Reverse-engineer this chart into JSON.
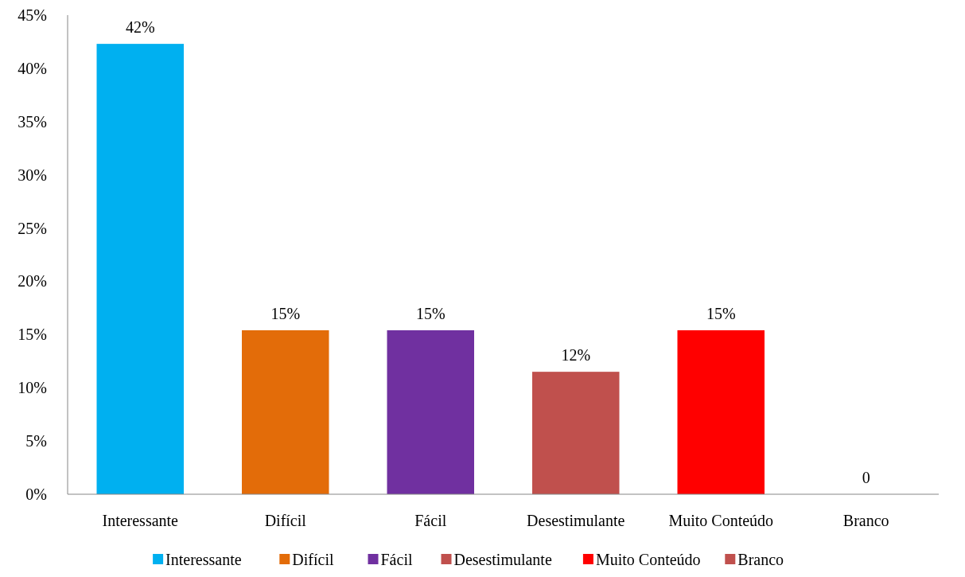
{
  "chart_data": {
    "type": "bar",
    "categories": [
      "Interessante",
      "Difícil",
      "Fácil",
      "Desestimulante",
      "Muito Conteúdo",
      "Branco"
    ],
    "series": [
      {
        "name": "Interessante",
        "color": "#00b0f0",
        "values": [
          42.3,
          null,
          null,
          null,
          null,
          null
        ],
        "value_labels": [
          "42%",
          null,
          null,
          null,
          null,
          null
        ]
      },
      {
        "name": "Difícil",
        "color": "#e36c09",
        "values": [
          null,
          15.4,
          null,
          null,
          null,
          null
        ],
        "value_labels": [
          null,
          "15%",
          null,
          null,
          null,
          null
        ]
      },
      {
        "name": "Fácil",
        "color": "#7030a0",
        "values": [
          null,
          null,
          15.4,
          null,
          null,
          null
        ],
        "value_labels": [
          null,
          null,
          "15%",
          null,
          null,
          null
        ]
      },
      {
        "name": "Desestimulante",
        "color": "#c0504d",
        "values": [
          null,
          null,
          null,
          11.5,
          null,
          null
        ],
        "value_labels": [
          null,
          null,
          null,
          "12%",
          null,
          null
        ]
      },
      {
        "name": "Muito Conteúdo",
        "color": "#ff0000",
        "values": [
          null,
          null,
          null,
          null,
          15.4,
          null
        ],
        "value_labels": [
          null,
          null,
          null,
          null,
          "15%",
          null
        ]
      },
      {
        "name": "Branco",
        "color": "#c0504d",
        "values": [
          null,
          null,
          null,
          null,
          null,
          0
        ],
        "value_labels": [
          null,
          null,
          null,
          null,
          null,
          "0"
        ]
      }
    ],
    "ylim": [
      0,
      45
    ],
    "yticks": [
      {
        "value": 0,
        "label": "0%"
      },
      {
        "value": 5,
        "label": "5%"
      },
      {
        "value": 10,
        "label": "10%"
      },
      {
        "value": 15,
        "label": "15%"
      },
      {
        "value": 20,
        "label": "20%"
      },
      {
        "value": 25,
        "label": "25%"
      },
      {
        "value": 30,
        "label": "30%"
      },
      {
        "value": 35,
        "label": "35%"
      },
      {
        "value": 40,
        "label": "40%"
      },
      {
        "value": 45,
        "label": "45%"
      }
    ],
    "grid": false,
    "legend": "bottom"
  }
}
